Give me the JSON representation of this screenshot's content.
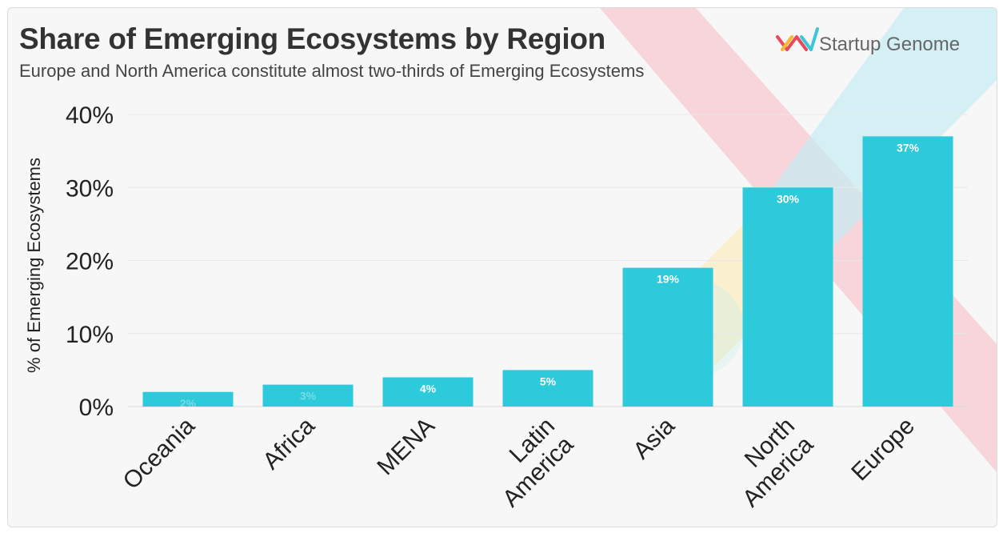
{
  "brand": {
    "name": "Startup Genome",
    "logo_icon": "startup-genome-logo-icon",
    "logo_colors": [
      "#e8495c",
      "#f5b82e",
      "#3cc6d8"
    ]
  },
  "colors": {
    "bar": "#2ccada",
    "bar_label": "#ffffff",
    "axis_text": "#222222",
    "grid": "#e8e8e8",
    "decor_pink": "#f7c9d0",
    "decor_cyan": "#c5ecf2",
    "decor_yellow": "#fbe9b4"
  },
  "chart_data": {
    "type": "bar",
    "title": "Share of Emerging Ecosystems by Region",
    "subtitle": "Europe and North America constitute almost two-thirds of Emerging Ecosystems",
    "xlabel": "",
    "ylabel": "% of Emerging Ecosystems",
    "ylim": [
      0,
      40
    ],
    "yticks": [
      0,
      10,
      20,
      30,
      40
    ],
    "ytick_labels": [
      "0%",
      "10%",
      "20%",
      "30%",
      "40%"
    ],
    "grid": true,
    "categories": [
      "Oceania",
      "Africa",
      "MENA",
      "Latin America",
      "Asia",
      "North America",
      "Europe"
    ],
    "category_lines": [
      [
        "Oceania"
      ],
      [
        "Africa"
      ],
      [
        "MENA"
      ],
      [
        "Latin",
        "America"
      ],
      [
        "Asia"
      ],
      [
        "North",
        "America"
      ],
      [
        "Europe"
      ]
    ],
    "values": [
      2,
      3,
      4,
      5,
      19,
      30,
      37
    ],
    "data_labels": [
      "2%",
      "3%",
      "4%",
      "5%",
      "19%",
      "30%",
      "37%"
    ]
  }
}
